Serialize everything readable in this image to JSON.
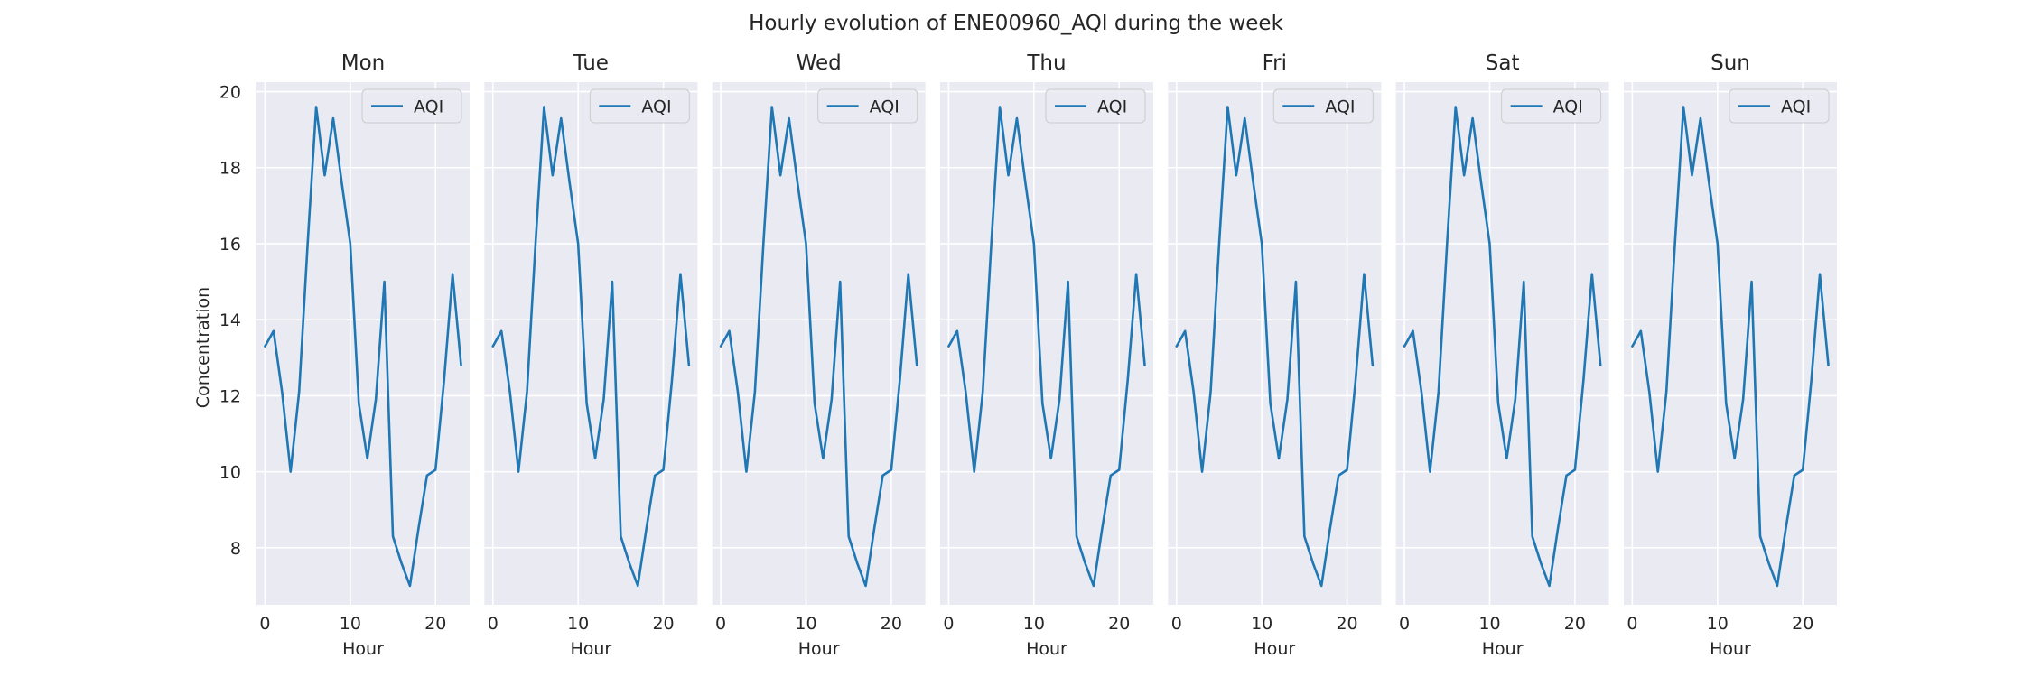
{
  "chart_data": {
    "type": "line",
    "title": "Hourly evolution of ENE00960_AQI during the week",
    "xlabel": "Hour",
    "ylabel": "Concentration",
    "xlim": [
      -1,
      24
    ],
    "ylim": [
      6.5,
      20.25
    ],
    "x_ticks": [
      0,
      10,
      20
    ],
    "y_ticks": [
      8,
      10,
      12,
      14,
      16,
      18,
      20
    ],
    "grid": true,
    "legend_position": "top-right",
    "line_color": "#1f77b4",
    "background_color": "#eaeaf2",
    "panels": [
      {
        "title": "Mon",
        "series": [
          {
            "name": "AQI",
            "x": [
              0,
              1,
              2,
              3,
              4,
              5,
              6,
              7,
              8,
              9,
              10,
              11,
              12,
              13,
              14,
              15,
              16,
              17,
              18,
              19,
              20,
              21,
              22,
              23
            ],
            "values": [
              13.3,
              13.7,
              12.1,
              10.0,
              12.1,
              16.0,
              19.6,
              17.8,
              19.3,
              17.6,
              16.0,
              11.8,
              10.35,
              11.9,
              15.0,
              8.3,
              7.6,
              7.0,
              8.5,
              9.9,
              10.05,
              12.4,
              15.2,
              12.8
            ]
          }
        ]
      },
      {
        "title": "Tue",
        "series": [
          {
            "name": "AQI",
            "x": [
              0,
              1,
              2,
              3,
              4,
              5,
              6,
              7,
              8,
              9,
              10,
              11,
              12,
              13,
              14,
              15,
              16,
              17,
              18,
              19,
              20,
              21,
              22,
              23
            ],
            "values": [
              13.3,
              13.7,
              12.1,
              10.0,
              12.1,
              16.0,
              19.6,
              17.8,
              19.3,
              17.6,
              16.0,
              11.8,
              10.35,
              11.9,
              15.0,
              8.3,
              7.6,
              7.0,
              8.5,
              9.9,
              10.05,
              12.4,
              15.2,
              12.8
            ]
          }
        ]
      },
      {
        "title": "Wed",
        "series": [
          {
            "name": "AQI",
            "x": [
              0,
              1,
              2,
              3,
              4,
              5,
              6,
              7,
              8,
              9,
              10,
              11,
              12,
              13,
              14,
              15,
              16,
              17,
              18,
              19,
              20,
              21,
              22,
              23
            ],
            "values": [
              13.3,
              13.7,
              12.1,
              10.0,
              12.1,
              16.0,
              19.6,
              17.8,
              19.3,
              17.6,
              16.0,
              11.8,
              10.35,
              11.9,
              15.0,
              8.3,
              7.6,
              7.0,
              8.5,
              9.9,
              10.05,
              12.4,
              15.2,
              12.8
            ]
          }
        ]
      },
      {
        "title": "Thu",
        "series": [
          {
            "name": "AQI",
            "x": [
              0,
              1,
              2,
              3,
              4,
              5,
              6,
              7,
              8,
              9,
              10,
              11,
              12,
              13,
              14,
              15,
              16,
              17,
              18,
              19,
              20,
              21,
              22,
              23
            ],
            "values": [
              13.3,
              13.7,
              12.1,
              10.0,
              12.1,
              16.0,
              19.6,
              17.8,
              19.3,
              17.6,
              16.0,
              11.8,
              10.35,
              11.9,
              15.0,
              8.3,
              7.6,
              7.0,
              8.5,
              9.9,
              10.05,
              12.4,
              15.2,
              12.8
            ]
          }
        ]
      },
      {
        "title": "Fri",
        "series": [
          {
            "name": "AQI",
            "x": [
              0,
              1,
              2,
              3,
              4,
              5,
              6,
              7,
              8,
              9,
              10,
              11,
              12,
              13,
              14,
              15,
              16,
              17,
              18,
              19,
              20,
              21,
              22,
              23
            ],
            "values": [
              13.3,
              13.7,
              12.1,
              10.0,
              12.1,
              16.0,
              19.6,
              17.8,
              19.3,
              17.6,
              16.0,
              11.8,
              10.35,
              11.9,
              15.0,
              8.3,
              7.6,
              7.0,
              8.5,
              9.9,
              10.05,
              12.4,
              15.2,
              12.8
            ]
          }
        ]
      },
      {
        "title": "Sat",
        "series": [
          {
            "name": "AQI",
            "x": [
              0,
              1,
              2,
              3,
              4,
              5,
              6,
              7,
              8,
              9,
              10,
              11,
              12,
              13,
              14,
              15,
              16,
              17,
              18,
              19,
              20,
              21,
              22,
              23
            ],
            "values": [
              13.3,
              13.7,
              12.1,
              10.0,
              12.1,
              16.0,
              19.6,
              17.8,
              19.3,
              17.6,
              16.0,
              11.8,
              10.35,
              11.9,
              15.0,
              8.3,
              7.6,
              7.0,
              8.5,
              9.9,
              10.05,
              12.4,
              15.2,
              12.8
            ]
          }
        ]
      },
      {
        "title": "Sun",
        "series": [
          {
            "name": "AQI",
            "x": [
              0,
              1,
              2,
              3,
              4,
              5,
              6,
              7,
              8,
              9,
              10,
              11,
              12,
              13,
              14,
              15,
              16,
              17,
              18,
              19,
              20,
              21,
              22,
              23
            ],
            "values": [
              13.3,
              13.7,
              12.1,
              10.0,
              12.1,
              16.0,
              19.6,
              17.8,
              19.3,
              17.6,
              16.0,
              11.8,
              10.35,
              11.9,
              15.0,
              8.3,
              7.6,
              7.0,
              8.5,
              9.9,
              10.05,
              12.4,
              15.2,
              12.8
            ]
          }
        ]
      }
    ]
  }
}
